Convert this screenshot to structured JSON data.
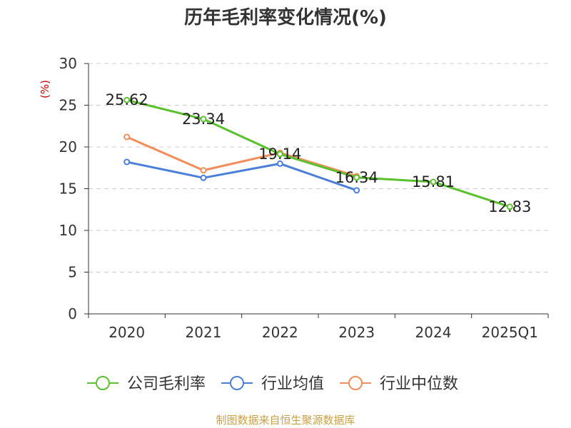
{
  "chart_data": {
    "type": "line",
    "title": "历年毛利率变化情况(%)",
    "ylabel": "(%)",
    "xlabel": "",
    "categories": [
      "2020",
      "2021",
      "2022",
      "2023",
      "2024",
      "2025Q1"
    ],
    "ylim": [
      0,
      30
    ],
    "yticks": [
      0,
      5,
      10,
      15,
      20,
      25,
      30
    ],
    "grid": true,
    "legend_position": "bottom",
    "series": [
      {
        "name": "公司毛利率",
        "color": "#5cc12e",
        "values": [
          25.62,
          23.34,
          19.14,
          16.34,
          15.81,
          12.83
        ],
        "labels": [
          "25.62",
          "23.34",
          "19.14",
          "16.34",
          "15.81",
          "12.83"
        ]
      },
      {
        "name": "行业均值",
        "color": "#4b7fd8",
        "values": [
          18.2,
          16.3,
          18.0,
          14.8,
          null,
          null
        ]
      },
      {
        "name": "行业中位数",
        "color": "#f28e5c",
        "values": [
          21.2,
          17.2,
          19.3,
          16.5,
          null,
          null
        ]
      }
    ]
  },
  "source": "制图数据来自恒生聚源数据库"
}
